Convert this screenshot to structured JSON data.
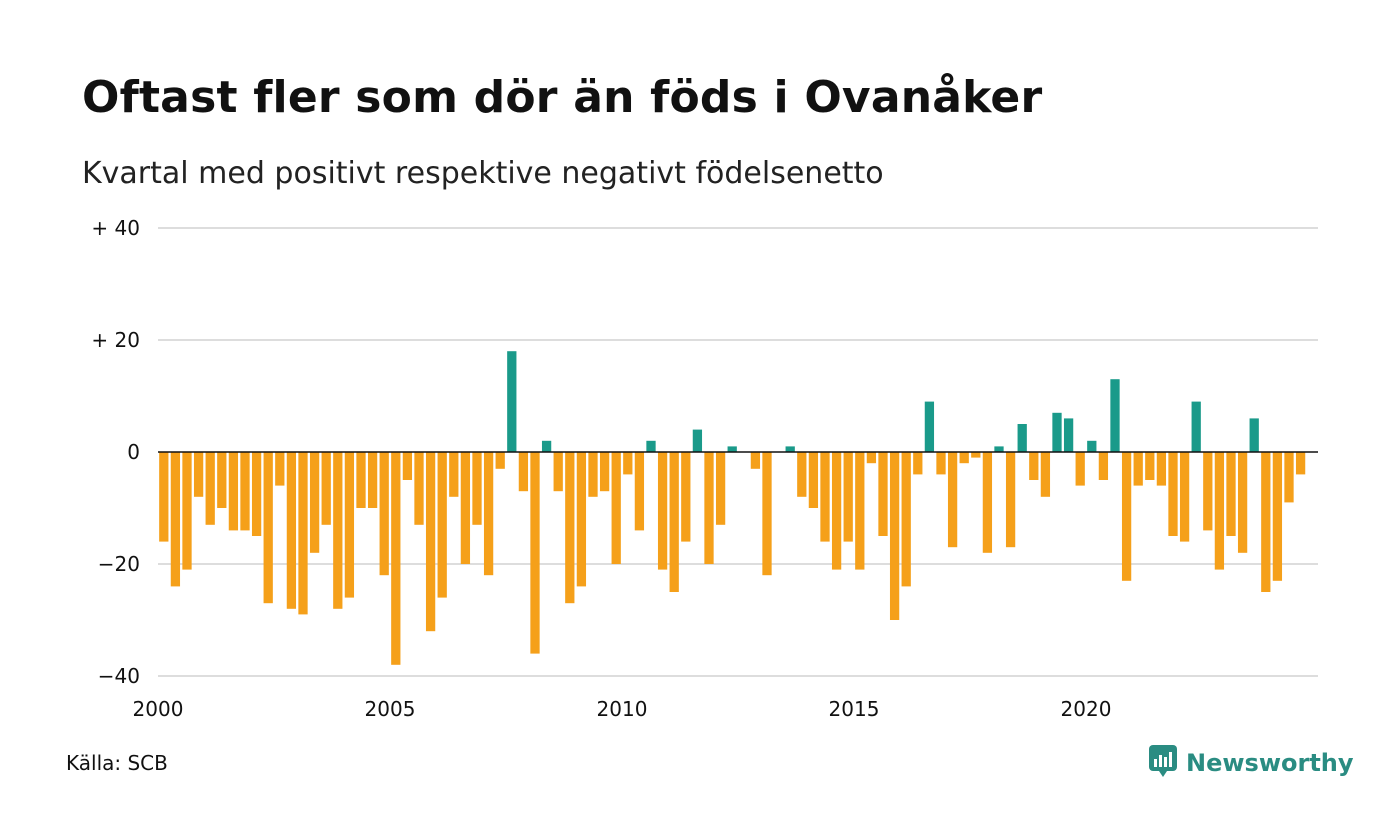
{
  "title": "Oftast fler som dör än föds i Ovanåker",
  "subtitle": "Kvartal med positivt respektive negativt födelsenetto",
  "source": "Källa: SCB",
  "brand": {
    "name": "Newsworthy",
    "icon": "newsworthy-chat-chart-icon",
    "color": "#2a8c82"
  },
  "colors": {
    "positive": "#1a9a8a",
    "negative": "#f5a01a",
    "grid": "#dddddd",
    "zero": "#111111"
  },
  "chart_data": {
    "type": "bar",
    "title": "Oftast fler som dör än föds i Ovanåker",
    "subtitle": "Kvartal med positivt respektive negativt födelsenetto",
    "xlabel": "",
    "ylabel": "",
    "ylim": [
      -40,
      40
    ],
    "xlim": [
      2000,
      2025
    ],
    "yticks": [
      {
        "value": 40,
        "label": "+ 40"
      },
      {
        "value": 20,
        "label": "+ 20"
      },
      {
        "value": 0,
        "label": "0"
      },
      {
        "value": -20,
        "label": "−20"
      },
      {
        "value": -40,
        "label": "−40"
      }
    ],
    "xticks": [
      {
        "value": 2000,
        "label": "2000"
      },
      {
        "value": 2005,
        "label": "2005"
      },
      {
        "value": 2010,
        "label": "2010"
      },
      {
        "value": 2015,
        "label": "2015"
      },
      {
        "value": 2020,
        "label": "2020"
      }
    ],
    "grid": true,
    "legend": "none",
    "start_year": 2000,
    "quarters_per_year": 4,
    "values": [
      -16,
      -24,
      -21,
      -8,
      -13,
      -10,
      -14,
      -14,
      -15,
      -27,
      -6,
      -28,
      -29,
      -18,
      -13,
      -28,
      -26,
      -10,
      -10,
      -22,
      -38,
      -5,
      -13,
      -32,
      -26,
      -8,
      -20,
      -13,
      -22,
      -3,
      18,
      -7,
      -36,
      2,
      -7,
      -27,
      -24,
      -8,
      -7,
      -20,
      -4,
      -14,
      2,
      -21,
      -25,
      -16,
      4,
      -20,
      -13,
      1,
      0,
      -3,
      -22,
      0,
      1,
      -8,
      -10,
      -16,
      -21,
      -16,
      -21,
      -2,
      -15,
      -30,
      -24,
      -4,
      9,
      -4,
      -17,
      -2,
      -1,
      -18,
      1,
      -17,
      5,
      -5,
      -8,
      7,
      6,
      -6,
      2,
      -5,
      13,
      -23,
      -6,
      -5,
      -6,
      -15,
      -16,
      9,
      -14,
      -21,
      -15,
      -18,
      6,
      -25,
      -23,
      -9,
      -4
    ]
  }
}
